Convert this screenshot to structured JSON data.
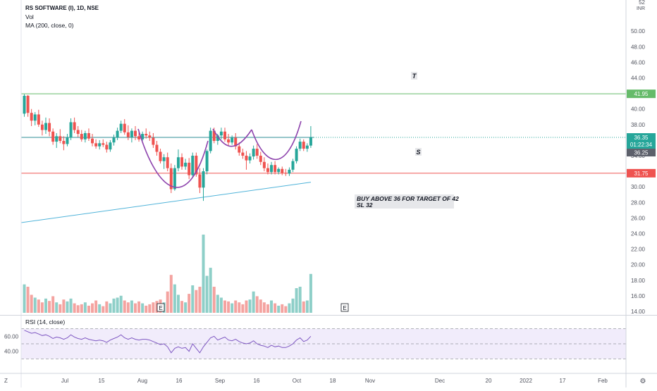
{
  "legend": {
    "symbol": "RS SOFTWARE (I), 1D, NSE",
    "vol": "Vol",
    "ma": "MA (200, close, 0)"
  },
  "rsi_label": "RSI (14, close)",
  "price_axis": {
    "top_label": "52",
    "unit_label": "INR",
    "ticks": [
      "50.00",
      "48.00",
      "46.00",
      "44.00",
      "42.00",
      "40.00",
      "38.00",
      "34.00",
      "30.00",
      "28.00",
      "26.00",
      "24.00",
      "22.00",
      "20.00",
      "18.00",
      "16.00",
      "14.00"
    ]
  },
  "rsi_axis": {
    "ticks": [
      "60.00",
      "40.00"
    ]
  },
  "time_axis": {
    "ticks": [
      "Jul",
      "15",
      "Aug",
      "16",
      "Sep",
      "16",
      "Oct",
      "18",
      "Nov",
      "Dec",
      "20",
      "2022",
      "17",
      "Feb"
    ]
  },
  "axis_corner": {
    "left": "Z",
    "right": "⚙"
  },
  "badges": {
    "target": "41.95",
    "price": "36.35",
    "countdown": "01:22:34",
    "grey": "36.25",
    "stop": "31.75"
  },
  "annotations": {
    "t": "T",
    "s": "S",
    "note_line1": "BUY ABOVE 36 FOR TARGET OF 42",
    "note_line2": "SL 32"
  },
  "earnings_markers": [
    "E",
    "E"
  ],
  "colors": {
    "up": "#26a69a",
    "down": "#ef5350",
    "vol_up": "#8ecfc8",
    "vol_down": "#f4a3a0",
    "target_line": "#66bb6a",
    "stop_line": "#ef5350",
    "price_line": "#26a69a",
    "ma_line": "#4fb3d9",
    "cup_line": "#8e44ad",
    "rsi_line": "#7e57c2",
    "rsi_band": "#f1ecfb"
  },
  "chart_data": {
    "type": "candlestick",
    "price_range": [
      14,
      52
    ],
    "rsi_range": [
      20,
      80
    ],
    "levels": {
      "target": 41.95,
      "last_price": 36.35,
      "stop": 31.75,
      "rsi_upper": 70,
      "rsi_lower": 30,
      "rsi_mid": 50
    },
    "ma_200": {
      "start": 25.4,
      "end": 30.6
    },
    "candles": [
      {
        "o": 39.4,
        "h": 41.9,
        "l": 39.0,
        "c": 41.7,
        "v": 60
      },
      {
        "o": 41.7,
        "h": 41.8,
        "l": 39.0,
        "c": 39.5,
        "v": 55
      },
      {
        "o": 39.5,
        "h": 40.0,
        "l": 37.8,
        "c": 38.5,
        "v": 38
      },
      {
        "o": 38.5,
        "h": 39.6,
        "l": 37.9,
        "c": 39.3,
        "v": 32
      },
      {
        "o": 39.3,
        "h": 39.9,
        "l": 37.7,
        "c": 38.0,
        "v": 28
      },
      {
        "o": 38.0,
        "h": 38.5,
        "l": 36.6,
        "c": 37.3,
        "v": 22
      },
      {
        "o": 37.3,
        "h": 38.9,
        "l": 36.8,
        "c": 38.2,
        "v": 30
      },
      {
        "o": 38.2,
        "h": 38.8,
        "l": 36.5,
        "c": 37.1,
        "v": 25
      },
      {
        "o": 37.1,
        "h": 37.5,
        "l": 35.4,
        "c": 35.8,
        "v": 35
      },
      {
        "o": 35.8,
        "h": 36.9,
        "l": 35.0,
        "c": 36.5,
        "v": 22
      },
      {
        "o": 36.5,
        "h": 37.4,
        "l": 35.6,
        "c": 35.9,
        "v": 18
      },
      {
        "o": 35.9,
        "h": 36.5,
        "l": 34.7,
        "c": 35.5,
        "v": 28
      },
      {
        "o": 35.5,
        "h": 36.8,
        "l": 35.2,
        "c": 36.3,
        "v": 24
      },
      {
        "o": 36.3,
        "h": 38.8,
        "l": 36.0,
        "c": 38.3,
        "v": 30
      },
      {
        "o": 38.3,
        "h": 38.9,
        "l": 36.9,
        "c": 37.3,
        "v": 20
      },
      {
        "o": 37.3,
        "h": 37.8,
        "l": 36.4,
        "c": 36.8,
        "v": 16
      },
      {
        "o": 36.8,
        "h": 37.3,
        "l": 35.8,
        "c": 36.1,
        "v": 18
      },
      {
        "o": 36.1,
        "h": 37.2,
        "l": 35.7,
        "c": 36.9,
        "v": 22
      },
      {
        "o": 36.9,
        "h": 37.5,
        "l": 35.9,
        "c": 36.2,
        "v": 15
      },
      {
        "o": 36.2,
        "h": 36.8,
        "l": 35.2,
        "c": 35.6,
        "v": 20
      },
      {
        "o": 35.6,
        "h": 36.1,
        "l": 34.9,
        "c": 35.2,
        "v": 26
      },
      {
        "o": 35.2,
        "h": 36.0,
        "l": 34.8,
        "c": 35.6,
        "v": 18
      },
      {
        "o": 35.6,
        "h": 36.1,
        "l": 35.1,
        "c": 35.4,
        "v": 14
      },
      {
        "o": 35.4,
        "h": 35.8,
        "l": 34.4,
        "c": 34.8,
        "v": 24
      },
      {
        "o": 34.8,
        "h": 36.0,
        "l": 34.5,
        "c": 35.7,
        "v": 20
      },
      {
        "o": 35.7,
        "h": 36.7,
        "l": 35.3,
        "c": 36.3,
        "v": 30
      },
      {
        "o": 36.3,
        "h": 37.6,
        "l": 36.0,
        "c": 37.2,
        "v": 32
      },
      {
        "o": 37.2,
        "h": 38.5,
        "l": 36.9,
        "c": 38.1,
        "v": 36
      },
      {
        "o": 38.1,
        "h": 38.7,
        "l": 36.7,
        "c": 37.0,
        "v": 26
      },
      {
        "o": 37.0,
        "h": 37.9,
        "l": 36.0,
        "c": 36.4,
        "v": 22
      },
      {
        "o": 36.4,
        "h": 37.5,
        "l": 35.7,
        "c": 37.2,
        "v": 26
      },
      {
        "o": 37.2,
        "h": 37.8,
        "l": 36.0,
        "c": 36.5,
        "v": 20
      },
      {
        "o": 36.5,
        "h": 37.3,
        "l": 35.8,
        "c": 36.1,
        "v": 24
      },
      {
        "o": 36.1,
        "h": 37.1,
        "l": 35.9,
        "c": 36.8,
        "v": 20
      },
      {
        "o": 36.8,
        "h": 37.5,
        "l": 36.2,
        "c": 36.6,
        "v": 15
      },
      {
        "o": 36.6,
        "h": 37.1,
        "l": 35.9,
        "c": 36.3,
        "v": 18
      },
      {
        "o": 36.3,
        "h": 36.9,
        "l": 35.0,
        "c": 35.4,
        "v": 22
      },
      {
        "o": 35.4,
        "h": 35.9,
        "l": 34.0,
        "c": 34.5,
        "v": 25
      },
      {
        "o": 34.5,
        "h": 34.9,
        "l": 33.0,
        "c": 33.3,
        "v": 28
      },
      {
        "o": 33.3,
        "h": 34.2,
        "l": 32.3,
        "c": 33.8,
        "v": 22
      },
      {
        "o": 33.8,
        "h": 34.4,
        "l": 32.0,
        "c": 32.4,
        "v": 45
      },
      {
        "o": 32.4,
        "h": 33.0,
        "l": 29.2,
        "c": 29.7,
        "v": 80
      },
      {
        "o": 29.7,
        "h": 32.8,
        "l": 29.5,
        "c": 32.4,
        "v": 60
      },
      {
        "o": 32.4,
        "h": 34.8,
        "l": 32.0,
        "c": 33.8,
        "v": 38
      },
      {
        "o": 33.8,
        "h": 34.3,
        "l": 32.2,
        "c": 32.6,
        "v": 25
      },
      {
        "o": 32.6,
        "h": 33.6,
        "l": 32.2,
        "c": 33.1,
        "v": 22
      },
      {
        "o": 33.1,
        "h": 33.7,
        "l": 31.0,
        "c": 31.5,
        "v": 40
      },
      {
        "o": 31.5,
        "h": 34.4,
        "l": 31.2,
        "c": 34.0,
        "v": 58
      },
      {
        "o": 34.0,
        "h": 34.4,
        "l": 31.3,
        "c": 31.6,
        "v": 48
      },
      {
        "o": 31.6,
        "h": 32.4,
        "l": 29.2,
        "c": 29.9,
        "v": 55
      },
      {
        "o": 29.9,
        "h": 32.4,
        "l": 28.2,
        "c": 32.0,
        "v": 165
      },
      {
        "o": 32.0,
        "h": 34.8,
        "l": 31.6,
        "c": 34.6,
        "v": 78
      },
      {
        "o": 34.6,
        "h": 37.6,
        "l": 34.3,
        "c": 37.2,
        "v": 95
      },
      {
        "o": 37.2,
        "h": 37.6,
        "l": 35.6,
        "c": 35.9,
        "v": 55
      },
      {
        "o": 35.9,
        "h": 36.8,
        "l": 35.4,
        "c": 36.6,
        "v": 38
      },
      {
        "o": 36.6,
        "h": 37.6,
        "l": 36.1,
        "c": 37.1,
        "v": 32
      },
      {
        "o": 37.1,
        "h": 37.6,
        "l": 35.8,
        "c": 36.1,
        "v": 26
      },
      {
        "o": 36.1,
        "h": 36.8,
        "l": 35.3,
        "c": 35.7,
        "v": 24
      },
      {
        "o": 35.7,
        "h": 36.6,
        "l": 35.4,
        "c": 36.3,
        "v": 20
      },
      {
        "o": 36.3,
        "h": 36.9,
        "l": 34.8,
        "c": 35.2,
        "v": 26
      },
      {
        "o": 35.2,
        "h": 35.7,
        "l": 34.0,
        "c": 34.4,
        "v": 22
      },
      {
        "o": 34.4,
        "h": 34.9,
        "l": 33.6,
        "c": 34.0,
        "v": 18
      },
      {
        "o": 34.0,
        "h": 34.6,
        "l": 32.2,
        "c": 33.4,
        "v": 26
      },
      {
        "o": 33.4,
        "h": 34.3,
        "l": 33.0,
        "c": 33.9,
        "v": 28
      },
      {
        "o": 33.9,
        "h": 35.3,
        "l": 33.5,
        "c": 34.9,
        "v": 45
      },
      {
        "o": 34.9,
        "h": 35.5,
        "l": 33.6,
        "c": 34.0,
        "v": 35
      },
      {
        "o": 34.0,
        "h": 34.5,
        "l": 32.8,
        "c": 33.2,
        "v": 28
      },
      {
        "o": 33.2,
        "h": 33.8,
        "l": 32.0,
        "c": 32.4,
        "v": 22
      },
      {
        "o": 32.4,
        "h": 33.0,
        "l": 31.6,
        "c": 31.9,
        "v": 18
      },
      {
        "o": 31.9,
        "h": 33.2,
        "l": 31.6,
        "c": 32.8,
        "v": 26
      },
      {
        "o": 32.8,
        "h": 33.3,
        "l": 31.6,
        "c": 31.9,
        "v": 20
      },
      {
        "o": 31.9,
        "h": 32.5,
        "l": 31.6,
        "c": 32.3,
        "v": 15
      },
      {
        "o": 32.3,
        "h": 32.6,
        "l": 31.5,
        "c": 31.8,
        "v": 18
      },
      {
        "o": 31.8,
        "h": 32.3,
        "l": 31.4,
        "c": 31.7,
        "v": 14
      },
      {
        "o": 31.7,
        "h": 32.5,
        "l": 31.4,
        "c": 32.2,
        "v": 20
      },
      {
        "o": 32.2,
        "h": 33.6,
        "l": 31.9,
        "c": 33.3,
        "v": 30
      },
      {
        "o": 33.3,
        "h": 35.2,
        "l": 33.0,
        "c": 34.9,
        "v": 52
      },
      {
        "o": 34.9,
        "h": 36.2,
        "l": 34.6,
        "c": 35.8,
        "v": 55
      },
      {
        "o": 35.8,
        "h": 36.1,
        "l": 34.6,
        "c": 34.9,
        "v": 24
      },
      {
        "o": 34.9,
        "h": 35.6,
        "l": 34.5,
        "c": 35.3,
        "v": 26
      },
      {
        "o": 35.3,
        "h": 37.8,
        "l": 35.0,
        "c": 36.35,
        "v": 82
      }
    ],
    "rsi": [
      68,
      66,
      64,
      65,
      63,
      61,
      62,
      60,
      57,
      59,
      58,
      56,
      58,
      62,
      59,
      57,
      56,
      58,
      56,
      55,
      54,
      55,
      54,
      52,
      55,
      57,
      59,
      62,
      58,
      56,
      58,
      56,
      55,
      56,
      56,
      55,
      53,
      51,
      49,
      50,
      46,
      38,
      44,
      46,
      44,
      45,
      40,
      50,
      44,
      38,
      46,
      52,
      58,
      60,
      55,
      57,
      59,
      55,
      54,
      56,
      53,
      51,
      50,
      51,
      54,
      50,
      48,
      47,
      45,
      48,
      46,
      47,
      45,
      45,
      47,
      50,
      55,
      58,
      53,
      55,
      60
    ]
  }
}
